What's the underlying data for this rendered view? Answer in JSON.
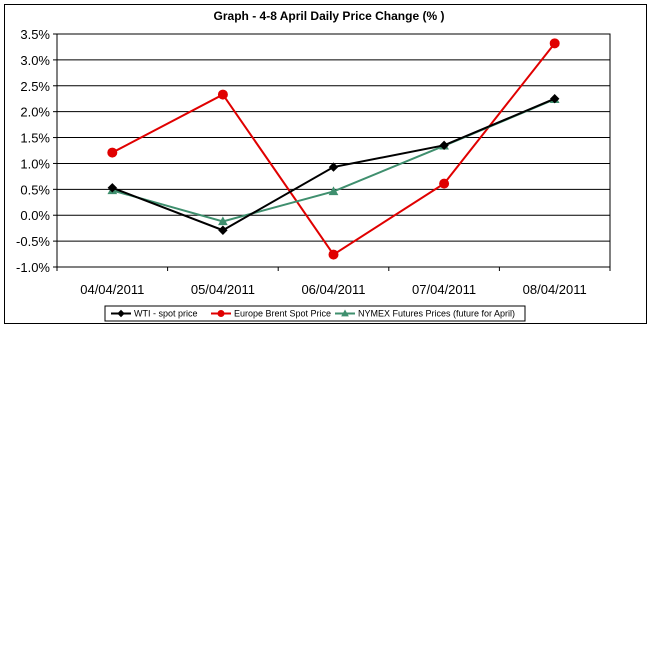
{
  "chart_data": {
    "type": "line",
    "title": "Graph  -  4-8 April Daily Price Change (% )",
    "xlabel": "",
    "ylabel": "",
    "categories": [
      "04/04/2011",
      "05/04/2011",
      "06/04/2011",
      "07/04/2011",
      "08/04/2011"
    ],
    "ylim": [
      -1.0,
      3.5
    ],
    "y_ticks": [
      "3.5%",
      "3.0%",
      "2.5%",
      "2.0%",
      "1.5%",
      "1.0%",
      "0.5%",
      "0.0%",
      "-0.5%",
      "-1.0%"
    ],
    "y_tick_values": [
      3.5,
      3.0,
      2.5,
      2.0,
      1.5,
      1.0,
      0.5,
      0.0,
      -0.5,
      -1.0
    ],
    "grid": true,
    "legend_position": "bottom",
    "series": [
      {
        "name": "WTI - spot price",
        "values": [
          0.53,
          -0.29,
          0.93,
          1.35,
          2.25
        ],
        "color": "#000000",
        "marker": "diamond"
      },
      {
        "name": "Europe Brent Spot Price",
        "values": [
          1.21,
          2.33,
          -0.76,
          0.61,
          3.32
        ],
        "color": "#e00000",
        "marker": "circle"
      },
      {
        "name": "NYMEX Futures Prices (future for April)",
        "values": [
          0.48,
          -0.12,
          0.46,
          1.34,
          2.24
        ],
        "color": "#3f8f6e",
        "marker": "triangle"
      }
    ]
  }
}
